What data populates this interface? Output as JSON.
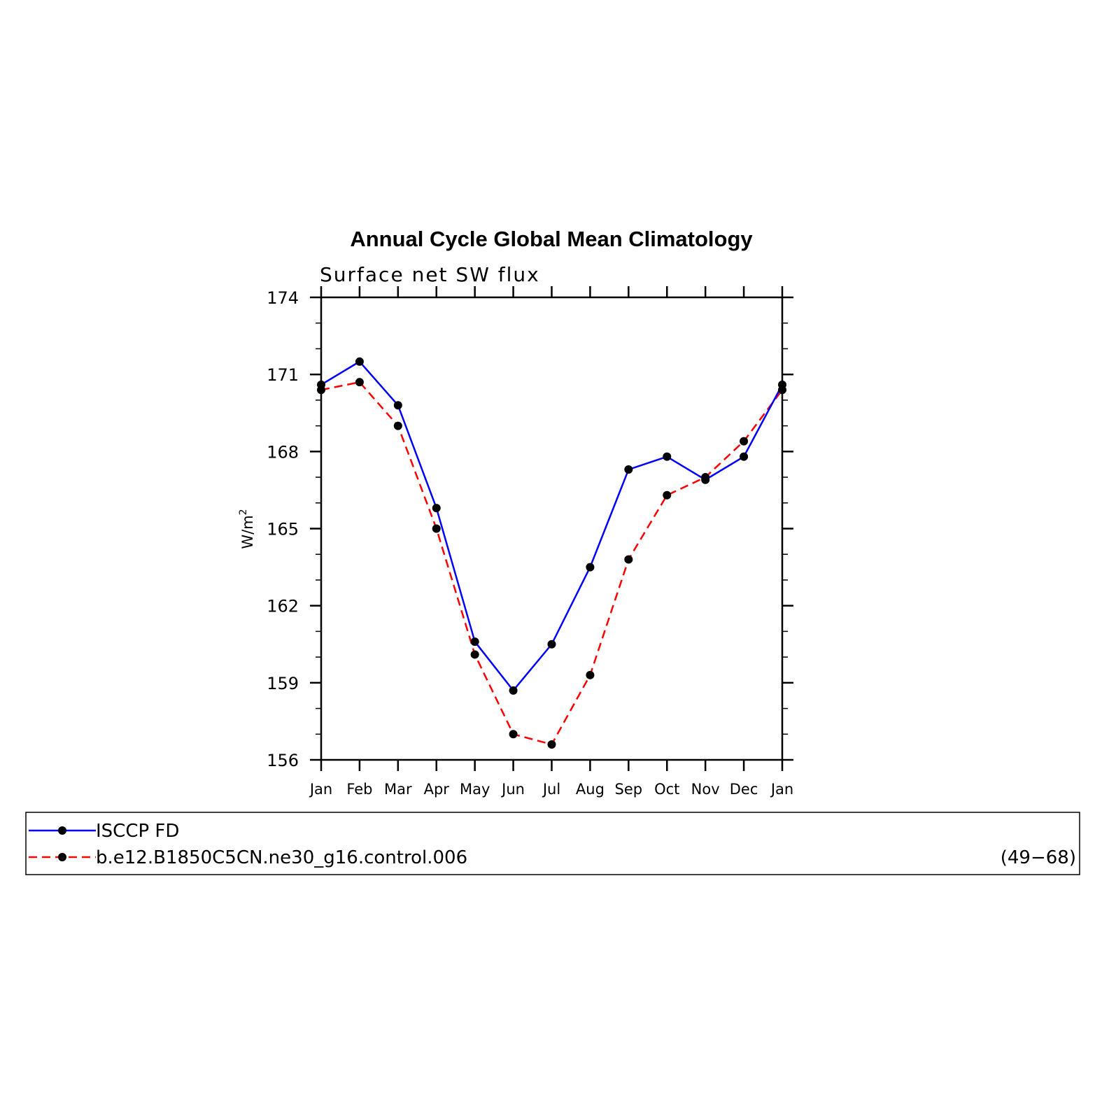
{
  "chart_data": {
    "type": "line",
    "title": "Annual Cycle Global Mean Climatology",
    "subtitle": "Surface net SW flux",
    "ylabel": "W/m",
    "ylabel_sup": "2",
    "categories": [
      "Jan",
      "Feb",
      "Mar",
      "Apr",
      "May",
      "Jun",
      "Jul",
      "Aug",
      "Sep",
      "Oct",
      "Nov",
      "Dec",
      "Jan"
    ],
    "ylim": [
      156,
      174
    ],
    "yticks": [
      156,
      159,
      162,
      165,
      168,
      171,
      174
    ],
    "series": [
      {
        "name": "ISCCP FD",
        "color": "#0000ff",
        "style": "solid",
        "values": [
          170.6,
          171.5,
          169.8,
          165.8,
          160.6,
          158.7,
          160.5,
          163.5,
          167.3,
          167.8,
          166.9,
          167.8,
          170.6
        ]
      },
      {
        "name": "b.e12.B1850C5CN.ne30_g16.control.006",
        "annotation": "(49−68)",
        "color": "#ff0000",
        "style": "dashed",
        "values": [
          170.4,
          170.7,
          169.0,
          165.0,
          160.1,
          157.0,
          156.6,
          159.3,
          163.8,
          166.3,
          167.0,
          168.4,
          170.4
        ]
      }
    ],
    "legend_position": "bottom"
  }
}
